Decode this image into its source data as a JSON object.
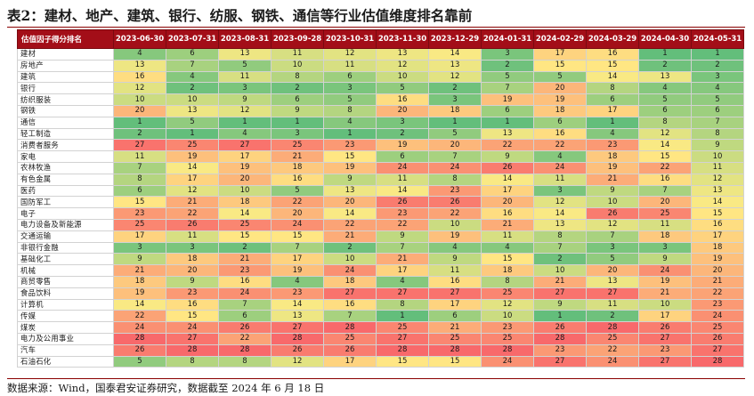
{
  "title": "表2：建材、地产、建筑、银行、纺服、钢铁、通信等行业估值维度排名靠前",
  "footer": "数据来源：Wind，国泰君安证券研究，数据截至 2024 年 6 月 18 日",
  "color_scale": {
    "low": "#63be7b",
    "mid": "#ffeb84",
    "high": "#f8696b"
  },
  "table": {
    "header_label": "估值因子得分排名",
    "dates": [
      "2023-06-30",
      "2023-07-31",
      "2023-08-31",
      "2023-09-28",
      "2023-10-31",
      "2023-11-30",
      "2023-12-29",
      "2024-01-31",
      "2024-02-29",
      "2024-03-29",
      "2024-04-30",
      "2024-05-31"
    ],
    "rows": [
      {
        "name": "建材",
        "values": [
          4,
          6,
          13,
          11,
          12,
          13,
          14,
          3,
          17,
          16,
          1,
          1
        ]
      },
      {
        "name": "房地产",
        "values": [
          13,
          7,
          5,
          10,
          11,
          12,
          13,
          2,
          15,
          15,
          2,
          2
        ]
      },
      {
        "name": "建筑",
        "values": [
          16,
          4,
          11,
          8,
          6,
          10,
          12,
          5,
          5,
          14,
          13,
          3
        ]
      },
      {
        "name": "银行",
        "values": [
          12,
          2,
          3,
          2,
          3,
          5,
          2,
          7,
          20,
          8,
          4,
          4
        ]
      },
      {
        "name": "纺织服装",
        "values": [
          10,
          10,
          9,
          6,
          5,
          16,
          3,
          19,
          19,
          6,
          5,
          5
        ]
      },
      {
        "name": "钢铁",
        "values": [
          20,
          13,
          12,
          9,
          8,
          20,
          18,
          6,
          18,
          17,
          6,
          6
        ]
      },
      {
        "name": "通信",
        "values": [
          1,
          5,
          1,
          1,
          4,
          3,
          1,
          1,
          6,
          1,
          8,
          7
        ]
      },
      {
        "name": "轻工制造",
        "values": [
          2,
          1,
          4,
          3,
          1,
          2,
          5,
          13,
          16,
          4,
          12,
          8
        ]
      },
      {
        "name": "消费者服务",
        "values": [
          27,
          25,
          27,
          25,
          23,
          19,
          20,
          22,
          22,
          23,
          14,
          9
        ]
      },
      {
        "name": "家电",
        "values": [
          11,
          19,
          17,
          21,
          15,
          6,
          7,
          9,
          4,
          18,
          15,
          10
        ]
      },
      {
        "name": "农林牧渔",
        "values": [
          7,
          14,
          19,
          18,
          19,
          24,
          24,
          26,
          24,
          19,
          22,
          11
        ]
      },
      {
        "name": "有色金属",
        "values": [
          8,
          17,
          20,
          16,
          9,
          11,
          8,
          14,
          11,
          21,
          16,
          12
        ]
      },
      {
        "name": "医药",
        "values": [
          6,
          12,
          10,
          5,
          13,
          14,
          23,
          17,
          3,
          9,
          7,
          13
        ]
      },
      {
        "name": "国防军工",
        "values": [
          15,
          21,
          18,
          22,
          20,
          26,
          26,
          20,
          12,
          10,
          20,
          14
        ]
      },
      {
        "name": "电子",
        "values": [
          23,
          22,
          14,
          20,
          14,
          23,
          22,
          16,
          14,
          26,
          25,
          15
        ]
      },
      {
        "name": "电力设备及新能源",
        "values": [
          25,
          26,
          25,
          24,
          22,
          22,
          10,
          21,
          13,
          12,
          11,
          16
        ]
      },
      {
        "name": "交通运输",
        "values": [
          17,
          11,
          15,
          15,
          21,
          9,
          19,
          11,
          8,
          7,
          18,
          17
        ]
      },
      {
        "name": "非银行金融",
        "values": [
          3,
          3,
          2,
          7,
          2,
          7,
          4,
          4,
          7,
          3,
          3,
          18
        ]
      },
      {
        "name": "基础化工",
        "values": [
          9,
          18,
          21,
          17,
          10,
          21,
          9,
          15,
          2,
          5,
          9,
          19
        ]
      },
      {
        "name": "机械",
        "values": [
          21,
          20,
          23,
          19,
          24,
          17,
          11,
          18,
          10,
          20,
          24,
          20
        ]
      },
      {
        "name": "商贸零售",
        "values": [
          18,
          9,
          16,
          4,
          18,
          4,
          16,
          8,
          21,
          13,
          19,
          21
        ]
      },
      {
        "name": "食品饮料",
        "values": [
          19,
          23,
          24,
          23,
          27,
          27,
          27,
          25,
          27,
          27,
          21,
          22
        ]
      },
      {
        "name": "计算机",
        "values": [
          14,
          16,
          7,
          14,
          16,
          8,
          17,
          12,
          9,
          11,
          10,
          23
        ]
      },
      {
        "name": "传媒",
        "values": [
          22,
          15,
          6,
          13,
          7,
          1,
          6,
          10,
          1,
          2,
          17,
          24
        ]
      },
      {
        "name": "煤炭",
        "values": [
          24,
          24,
          26,
          27,
          28,
          25,
          21,
          23,
          26,
          28,
          26,
          25
        ]
      },
      {
        "name": "电力及公用事业",
        "values": [
          28,
          27,
          22,
          28,
          25,
          27,
          25,
          25,
          28,
          25,
          27,
          26
        ]
      },
      {
        "name": "汽车",
        "values": [
          26,
          28,
          28,
          26,
          26,
          28,
          28,
          28,
          23,
          22,
          23,
          27
        ]
      },
      {
        "name": "石油石化",
        "values": [
          5,
          8,
          8,
          12,
          17,
          15,
          15,
          24,
          27,
          24,
          27,
          28
        ]
      }
    ]
  }
}
